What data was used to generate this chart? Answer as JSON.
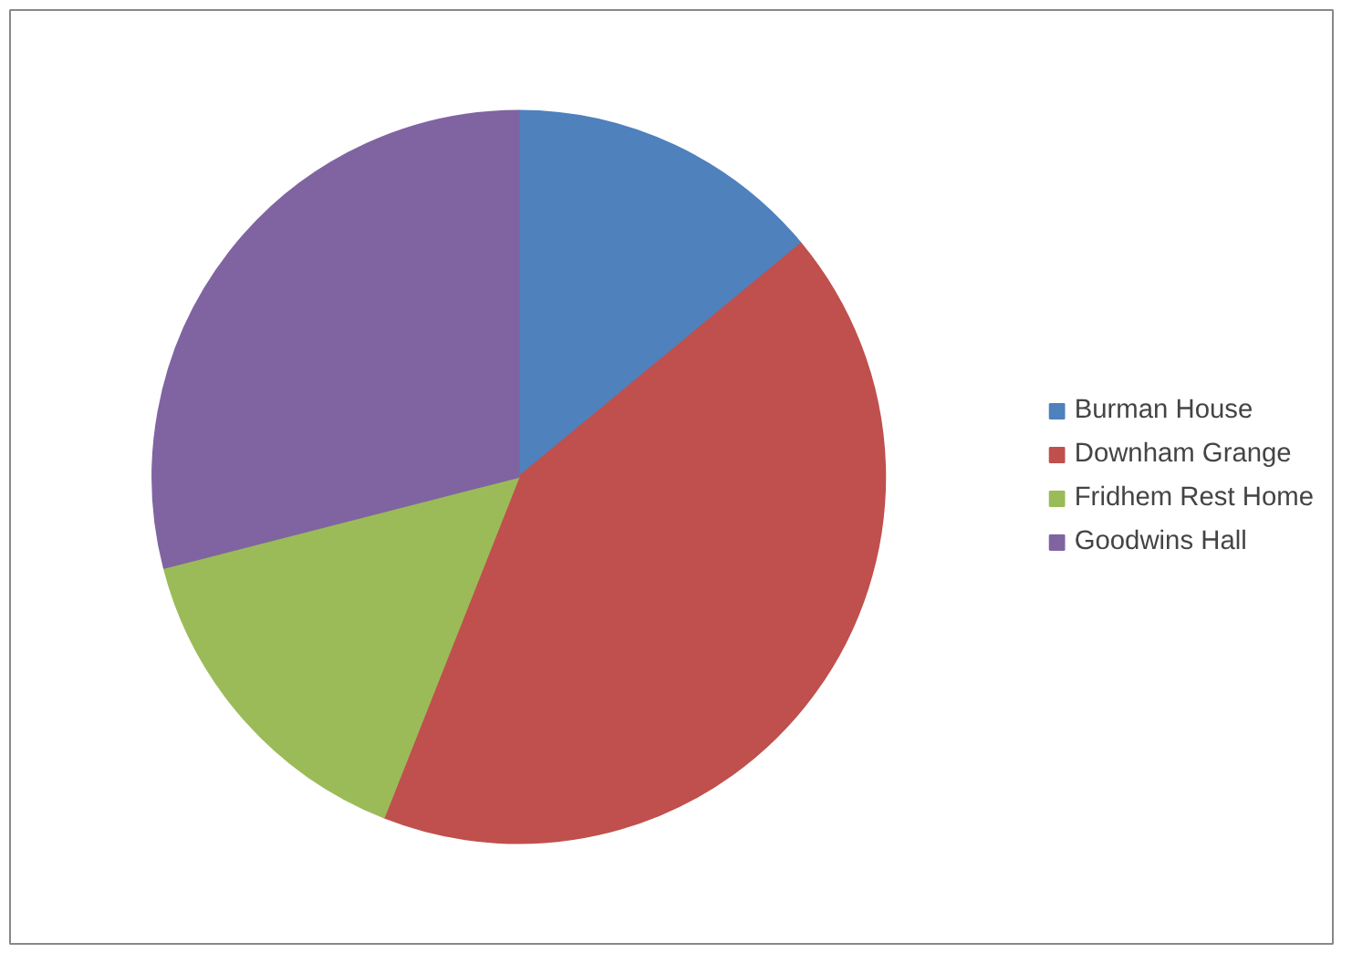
{
  "chart_data": {
    "type": "pie",
    "categories": [
      "Burman House",
      "Downham Grange",
      "Fridhem Rest Home",
      "Goodwins Hall"
    ],
    "values": [
      14,
      42,
      15,
      29
    ],
    "colors": [
      "#4f81bd",
      "#c0504d",
      "#9bbb59",
      "#8064a2"
    ],
    "legend": "right"
  }
}
